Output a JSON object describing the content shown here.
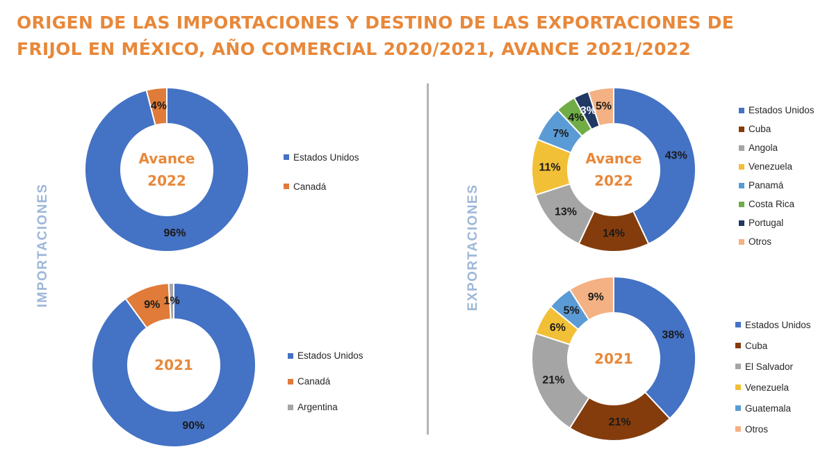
{
  "title_line1": "ORIGEN DE LAS IMPORTACIONES Y DESTINO DE LAS EXPORTACIONES DE",
  "title_line2": "FRIJOL EN MÉXICO, AÑO COMERCIAL 2020/2021, AVANCE 2021/2022",
  "side_labels": {
    "imports": "IMPORTACIONES",
    "exports": "EXPORTACIONES"
  },
  "colors": {
    "title": "#E8883A",
    "center_text": "#E8883A",
    "side_label": "#9DB7D8",
    "Estados Unidos": "#4472C4",
    "Canadá": "#E07B39",
    "Argentina": "#A5A5A5",
    "Cuba": "#843C0C",
    "Angola": "#A5A5A5",
    "El Salvador": "#A5A5A5",
    "Venezuela": "#F2C037",
    "Panamá": "#5B9BD5",
    "Guatemala": "#5B9BD5",
    "Costa Rica": "#70AD47",
    "Portugal": "#203864",
    "Otros": "#F4B183"
  },
  "chart_data": [
    {
      "type": "pie",
      "id": "imp2022",
      "center_label": [
        "Avance",
        "2022"
      ],
      "categories": [
        "Estados Unidos",
        "Canadá"
      ],
      "values": [
        96,
        4
      ],
      "labels": [
        "96%",
        "4%"
      ]
    },
    {
      "type": "pie",
      "id": "imp2021",
      "center_label": [
        "2021"
      ],
      "categories": [
        "Estados Unidos",
        "Canadá",
        "Argentina"
      ],
      "values": [
        90,
        9,
        1
      ],
      "labels": [
        "90%",
        "9%",
        "1%"
      ]
    },
    {
      "type": "pie",
      "id": "exp2022",
      "center_label": [
        "Avance",
        "2022"
      ],
      "categories": [
        "Estados Unidos",
        "Cuba",
        "Angola",
        "Venezuela",
        "Panamá",
        "Costa Rica",
        "Portugal",
        "Otros"
      ],
      "values": [
        43,
        14,
        13,
        11,
        7,
        4,
        3,
        5
      ],
      "labels": [
        "43%",
        "14%",
        "13%",
        "11%",
        "7%",
        "4%",
        "3%",
        "5%"
      ]
    },
    {
      "type": "pie",
      "id": "exp2021",
      "center_label": [
        "2021"
      ],
      "categories": [
        "Estados Unidos",
        "Cuba",
        "El Salvador",
        "Venezuela",
        "Guatemala",
        "Otros"
      ],
      "values": [
        38,
        21,
        21,
        6,
        5,
        9
      ],
      "labels": [
        "38%",
        "21%",
        "21%",
        "6%",
        "5%",
        "9%"
      ]
    }
  ]
}
